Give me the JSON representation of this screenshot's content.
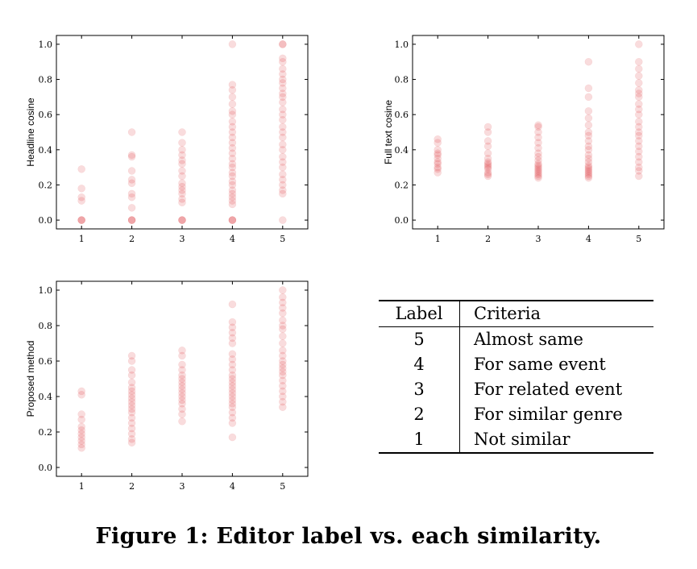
{
  "chart_data": [
    {
      "type": "scatter",
      "title": "",
      "xlabel": "",
      "ylabel": "Headline cosine",
      "xlim": [
        0.5,
        5.5
      ],
      "ylim": [
        -0.05,
        1.05
      ],
      "xticks": [
        1,
        2,
        3,
        4,
        5
      ],
      "yticks": [
        "0.0",
        "0.2",
        "0.4",
        "0.6",
        "0.8",
        "1.0"
      ],
      "points": [
        [
          1,
          0.0
        ],
        [
          1,
          0.0
        ],
        [
          1,
          0.0
        ],
        [
          1,
          0.11
        ],
        [
          1,
          0.13
        ],
        [
          1,
          0.18
        ],
        [
          1,
          0.29
        ],
        [
          2,
          0.0
        ],
        [
          2,
          0.0
        ],
        [
          2,
          0.0
        ],
        [
          2,
          0.07
        ],
        [
          2,
          0.13
        ],
        [
          2,
          0.15
        ],
        [
          2,
          0.21
        ],
        [
          2,
          0.23
        ],
        [
          2,
          0.28
        ],
        [
          2,
          0.36
        ],
        [
          2,
          0.37
        ],
        [
          2,
          0.5
        ],
        [
          3,
          0.0
        ],
        [
          3,
          0.0
        ],
        [
          3,
          0.0
        ],
        [
          3,
          0.1
        ],
        [
          3,
          0.12
        ],
        [
          3,
          0.15
        ],
        [
          3,
          0.17
        ],
        [
          3,
          0.19
        ],
        [
          3,
          0.21
        ],
        [
          3,
          0.25
        ],
        [
          3,
          0.28
        ],
        [
          3,
          0.32
        ],
        [
          3,
          0.34
        ],
        [
          3,
          0.37
        ],
        [
          3,
          0.4
        ],
        [
          3,
          0.44
        ],
        [
          3,
          0.5
        ],
        [
          4,
          0.0
        ],
        [
          4,
          0.0
        ],
        [
          4,
          0.0
        ],
        [
          4,
          0.09
        ],
        [
          4,
          0.11
        ],
        [
          4,
          0.13
        ],
        [
          4,
          0.15
        ],
        [
          4,
          0.17
        ],
        [
          4,
          0.2
        ],
        [
          4,
          0.22
        ],
        [
          4,
          0.25
        ],
        [
          4,
          0.27
        ],
        [
          4,
          0.3
        ],
        [
          4,
          0.32
        ],
        [
          4,
          0.35
        ],
        [
          4,
          0.38
        ],
        [
          4,
          0.41
        ],
        [
          4,
          0.44
        ],
        [
          4,
          0.47
        ],
        [
          4,
          0.5
        ],
        [
          4,
          0.53
        ],
        [
          4,
          0.56
        ],
        [
          4,
          0.6
        ],
        [
          4,
          0.62
        ],
        [
          4,
          0.66
        ],
        [
          4,
          0.7
        ],
        [
          4,
          0.74
        ],
        [
          4,
          0.77
        ],
        [
          4,
          1.0
        ],
        [
          5,
          0.0
        ],
        [
          5,
          0.15
        ],
        [
          5,
          0.17
        ],
        [
          5,
          0.2
        ],
        [
          5,
          0.23
        ],
        [
          5,
          0.26
        ],
        [
          5,
          0.3
        ],
        [
          5,
          0.33
        ],
        [
          5,
          0.36
        ],
        [
          5,
          0.4
        ],
        [
          5,
          0.43
        ],
        [
          5,
          0.47
        ],
        [
          5,
          0.5
        ],
        [
          5,
          0.53
        ],
        [
          5,
          0.57
        ],
        [
          5,
          0.6
        ],
        [
          5,
          0.63
        ],
        [
          5,
          0.67
        ],
        [
          5,
          0.7
        ],
        [
          5,
          0.72
        ],
        [
          5,
          0.75
        ],
        [
          5,
          0.78
        ],
        [
          5,
          0.8
        ],
        [
          5,
          0.83
        ],
        [
          5,
          0.86
        ],
        [
          5,
          0.9
        ],
        [
          5,
          0.92
        ],
        [
          5,
          1.0
        ],
        [
          5,
          1.0
        ]
      ]
    },
    {
      "type": "scatter",
      "title": "",
      "xlabel": "",
      "ylabel": "Full text cosine",
      "xlim": [
        0.5,
        5.5
      ],
      "ylim": [
        -0.05,
        1.05
      ],
      "xticks": [
        1,
        2,
        3,
        4,
        5
      ],
      "yticks": [
        "0.0",
        "0.2",
        "0.4",
        "0.6",
        "0.8",
        "1.0"
      ],
      "points": [
        [
          1,
          0.27
        ],
        [
          1,
          0.29
        ],
        [
          1,
          0.3
        ],
        [
          1,
          0.32
        ],
        [
          1,
          0.33
        ],
        [
          1,
          0.35
        ],
        [
          1,
          0.37
        ],
        [
          1,
          0.38
        ],
        [
          1,
          0.4
        ],
        [
          1,
          0.44
        ],
        [
          1,
          0.46
        ],
        [
          2,
          0.25
        ],
        [
          2,
          0.26
        ],
        [
          2,
          0.27
        ],
        [
          2,
          0.29
        ],
        [
          2,
          0.3
        ],
        [
          2,
          0.31
        ],
        [
          2,
          0.32
        ],
        [
          2,
          0.33
        ],
        [
          2,
          0.35
        ],
        [
          2,
          0.38
        ],
        [
          2,
          0.42
        ],
        [
          2,
          0.45
        ],
        [
          2,
          0.5
        ],
        [
          2,
          0.53
        ],
        [
          3,
          0.24
        ],
        [
          3,
          0.25
        ],
        [
          3,
          0.26
        ],
        [
          3,
          0.27
        ],
        [
          3,
          0.28
        ],
        [
          3,
          0.29
        ],
        [
          3,
          0.3
        ],
        [
          3,
          0.31
        ],
        [
          3,
          0.32
        ],
        [
          3,
          0.34
        ],
        [
          3,
          0.36
        ],
        [
          3,
          0.38
        ],
        [
          3,
          0.41
        ],
        [
          3,
          0.44
        ],
        [
          3,
          0.47
        ],
        [
          3,
          0.5
        ],
        [
          3,
          0.53
        ],
        [
          3,
          0.54
        ],
        [
          4,
          0.24
        ],
        [
          4,
          0.25
        ],
        [
          4,
          0.26
        ],
        [
          4,
          0.27
        ],
        [
          4,
          0.28
        ],
        [
          4,
          0.29
        ],
        [
          4,
          0.3
        ],
        [
          4,
          0.31
        ],
        [
          4,
          0.33
        ],
        [
          4,
          0.35
        ],
        [
          4,
          0.37
        ],
        [
          4,
          0.4
        ],
        [
          4,
          0.42
        ],
        [
          4,
          0.45
        ],
        [
          4,
          0.48
        ],
        [
          4,
          0.5
        ],
        [
          4,
          0.54
        ],
        [
          4,
          0.58
        ],
        [
          4,
          0.62
        ],
        [
          4,
          0.7
        ],
        [
          4,
          0.75
        ],
        [
          4,
          0.9
        ],
        [
          5,
          0.25
        ],
        [
          5,
          0.28
        ],
        [
          5,
          0.3
        ],
        [
          5,
          0.33
        ],
        [
          5,
          0.36
        ],
        [
          5,
          0.39
        ],
        [
          5,
          0.42
        ],
        [
          5,
          0.45
        ],
        [
          5,
          0.48
        ],
        [
          5,
          0.5
        ],
        [
          5,
          0.53
        ],
        [
          5,
          0.56
        ],
        [
          5,
          0.6
        ],
        [
          5,
          0.63
        ],
        [
          5,
          0.66
        ],
        [
          5,
          0.7
        ],
        [
          5,
          0.72
        ],
        [
          5,
          0.74
        ],
        [
          5,
          0.78
        ],
        [
          5,
          0.82
        ],
        [
          5,
          0.86
        ],
        [
          5,
          0.9
        ],
        [
          5,
          1.0
        ]
      ]
    },
    {
      "type": "scatter",
      "title": "",
      "xlabel": "",
      "ylabel": "Proposed method",
      "xlim": [
        0.5,
        5.5
      ],
      "ylim": [
        -0.05,
        1.05
      ],
      "xticks": [
        1,
        2,
        3,
        4,
        5
      ],
      "yticks": [
        "0.0",
        "0.2",
        "0.4",
        "0.6",
        "0.8",
        "1.0"
      ],
      "points": [
        [
          1,
          0.11
        ],
        [
          1,
          0.13
        ],
        [
          1,
          0.15
        ],
        [
          1,
          0.17
        ],
        [
          1,
          0.19
        ],
        [
          1,
          0.21
        ],
        [
          1,
          0.23
        ],
        [
          1,
          0.27
        ],
        [
          1,
          0.3
        ],
        [
          1,
          0.41
        ],
        [
          1,
          0.43
        ],
        [
          2,
          0.14
        ],
        [
          2,
          0.16
        ],
        [
          2,
          0.19
        ],
        [
          2,
          0.22
        ],
        [
          2,
          0.25
        ],
        [
          2,
          0.28
        ],
        [
          2,
          0.31
        ],
        [
          2,
          0.33
        ],
        [
          2,
          0.35
        ],
        [
          2,
          0.37
        ],
        [
          2,
          0.39
        ],
        [
          2,
          0.41
        ],
        [
          2,
          0.43
        ],
        [
          2,
          0.45
        ],
        [
          2,
          0.48
        ],
        [
          2,
          0.52
        ],
        [
          2,
          0.55
        ],
        [
          2,
          0.6
        ],
        [
          2,
          0.63
        ],
        [
          3,
          0.26
        ],
        [
          3,
          0.3
        ],
        [
          3,
          0.33
        ],
        [
          3,
          0.36
        ],
        [
          3,
          0.38
        ],
        [
          3,
          0.4
        ],
        [
          3,
          0.42
        ],
        [
          3,
          0.44
        ],
        [
          3,
          0.46
        ],
        [
          3,
          0.48
        ],
        [
          3,
          0.5
        ],
        [
          3,
          0.52
        ],
        [
          3,
          0.55
        ],
        [
          3,
          0.58
        ],
        [
          3,
          0.63
        ],
        [
          3,
          0.66
        ],
        [
          4,
          0.17
        ],
        [
          4,
          0.25
        ],
        [
          4,
          0.28
        ],
        [
          4,
          0.31
        ],
        [
          4,
          0.34
        ],
        [
          4,
          0.36
        ],
        [
          4,
          0.38
        ],
        [
          4,
          0.4
        ],
        [
          4,
          0.42
        ],
        [
          4,
          0.44
        ],
        [
          4,
          0.46
        ],
        [
          4,
          0.48
        ],
        [
          4,
          0.5
        ],
        [
          4,
          0.52
        ],
        [
          4,
          0.55
        ],
        [
          4,
          0.58
        ],
        [
          4,
          0.61
        ],
        [
          4,
          0.64
        ],
        [
          4,
          0.7
        ],
        [
          4,
          0.73
        ],
        [
          4,
          0.76
        ],
        [
          4,
          0.79
        ],
        [
          4,
          0.82
        ],
        [
          4,
          0.92
        ],
        [
          5,
          0.34
        ],
        [
          5,
          0.37
        ],
        [
          5,
          0.4
        ],
        [
          5,
          0.43
        ],
        [
          5,
          0.46
        ],
        [
          5,
          0.49
        ],
        [
          5,
          0.52
        ],
        [
          5,
          0.54
        ],
        [
          5,
          0.56
        ],
        [
          5,
          0.58
        ],
        [
          5,
          0.6
        ],
        [
          5,
          0.63
        ],
        [
          5,
          0.66
        ],
        [
          5,
          0.7
        ],
        [
          5,
          0.74
        ],
        [
          5,
          0.78
        ],
        [
          5,
          0.8
        ],
        [
          5,
          0.83
        ],
        [
          5,
          0.87
        ],
        [
          5,
          0.9
        ],
        [
          5,
          0.93
        ],
        [
          5,
          0.96
        ],
        [
          5,
          1.0
        ]
      ]
    }
  ],
  "marker_color": "#d9262b",
  "table": {
    "headers": [
      "Label",
      "Criteria"
    ],
    "rows": [
      [
        "5",
        "Almost same"
      ],
      [
        "4",
        "For same event"
      ],
      [
        "3",
        "For related event"
      ],
      [
        "2",
        "For similar genre"
      ],
      [
        "1",
        "Not similar"
      ]
    ]
  },
  "caption": "Figure 1: Editor label vs. each similarity."
}
